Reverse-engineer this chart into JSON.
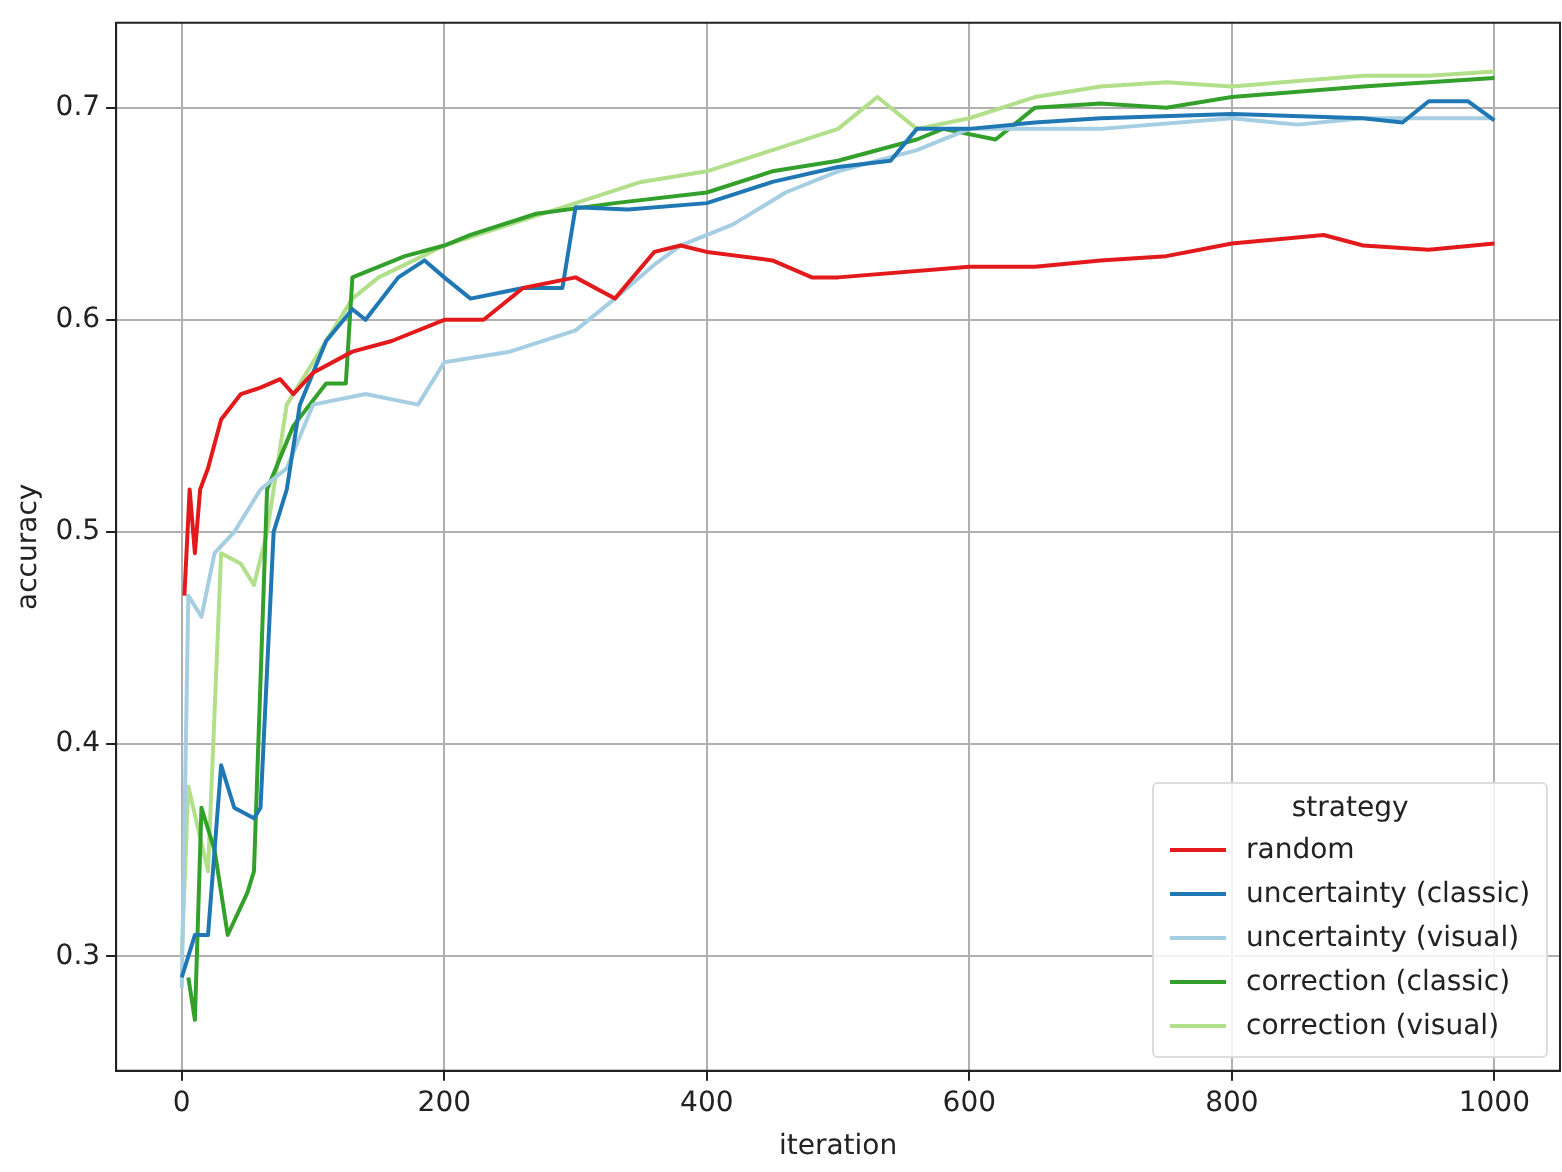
{
  "chart_data": {
    "type": "line",
    "xlabel": "iteration",
    "ylabel": "accuracy",
    "legend_title": "strategy",
    "legend": "bottom right",
    "grid": true,
    "xlim": [
      -50,
      1050
    ],
    "xticks": [
      0,
      200,
      400,
      600,
      800,
      1000
    ],
    "ylim": [
      0.246,
      0.74
    ],
    "yticks": [
      0.3,
      0.4,
      0.5,
      0.6,
      0.7
    ],
    "series": [
      {
        "name": "random",
        "color": "#e31a1c",
        "x": [
          2,
          6,
          10,
          14,
          20,
          30,
          45,
          60,
          75,
          85,
          100,
          130,
          160,
          200,
          230,
          260,
          300,
          330,
          360,
          380,
          400,
          450,
          480,
          500,
          600,
          650,
          700,
          750,
          800,
          870,
          900,
          950,
          1000
        ],
        "values": [
          0.47,
          0.52,
          0.49,
          0.52,
          0.53,
          0.553,
          0.565,
          0.568,
          0.572,
          0.565,
          0.575,
          0.585,
          0.59,
          0.6,
          0.6,
          0.615,
          0.62,
          0.61,
          0.632,
          0.635,
          0.632,
          0.628,
          0.62,
          0.62,
          0.625,
          0.625,
          0.628,
          0.63,
          0.636,
          0.64,
          0.635,
          0.633,
          0.636
        ]
      },
      {
        "name": "uncertainty (classic)",
        "color": "#1f78b4",
        "x": [
          0,
          10,
          20,
          30,
          40,
          55,
          60,
          70,
          80,
          90,
          110,
          130,
          140,
          165,
          185,
          200,
          220,
          260,
          290,
          300,
          340,
          400,
          450,
          500,
          540,
          560,
          600,
          650,
          700,
          800,
          900,
          930,
          950,
          980,
          1000
        ],
        "values": [
          0.29,
          0.31,
          0.31,
          0.39,
          0.37,
          0.365,
          0.37,
          0.5,
          0.52,
          0.56,
          0.59,
          0.605,
          0.6,
          0.62,
          0.628,
          0.62,
          0.61,
          0.615,
          0.615,
          0.653,
          0.652,
          0.655,
          0.665,
          0.672,
          0.675,
          0.69,
          0.69,
          0.693,
          0.695,
          0.697,
          0.695,
          0.693,
          0.703,
          0.703,
          0.694
        ]
      },
      {
        "name": "uncertainty (visual)",
        "color": "#a6cee3",
        "x": [
          0,
          5,
          15,
          25,
          40,
          60,
          80,
          100,
          140,
          180,
          200,
          250,
          300,
          330,
          360,
          380,
          420,
          460,
          500,
          560,
          600,
          700,
          800,
          850,
          900,
          1000
        ],
        "values": [
          0.285,
          0.47,
          0.46,
          0.49,
          0.5,
          0.52,
          0.53,
          0.56,
          0.565,
          0.56,
          0.58,
          0.585,
          0.595,
          0.61,
          0.626,
          0.635,
          0.645,
          0.66,
          0.67,
          0.68,
          0.69,
          0.69,
          0.695,
          0.692,
          0.695,
          0.695
        ]
      },
      {
        "name": "correction (classic)",
        "color": "#33a02c",
        "x": [
          5,
          10,
          15,
          25,
          35,
          50,
          55,
          65,
          85,
          110,
          125,
          130,
          170,
          200,
          220,
          270,
          330,
          400,
          450,
          500,
          560,
          580,
          620,
          650,
          700,
          750,
          800,
          900,
          950,
          1000
        ],
        "values": [
          0.29,
          0.27,
          0.37,
          0.35,
          0.31,
          0.33,
          0.34,
          0.52,
          0.55,
          0.57,
          0.57,
          0.62,
          0.63,
          0.635,
          0.64,
          0.65,
          0.655,
          0.66,
          0.67,
          0.675,
          0.685,
          0.69,
          0.685,
          0.7,
          0.702,
          0.7,
          0.705,
          0.71,
          0.712,
          0.714
        ]
      },
      {
        "name": "correction (visual)",
        "color": "#b2df8a",
        "x": [
          0,
          5,
          20,
          30,
          45,
          55,
          65,
          80,
          100,
          130,
          150,
          200,
          250,
          300,
          350,
          400,
          450,
          500,
          530,
          560,
          600,
          650,
          700,
          750,
          800,
          900,
          950,
          1000
        ],
        "values": [
          0.3,
          0.38,
          0.34,
          0.49,
          0.485,
          0.475,
          0.5,
          0.56,
          0.58,
          0.61,
          0.62,
          0.635,
          0.645,
          0.655,
          0.665,
          0.67,
          0.68,
          0.69,
          0.705,
          0.69,
          0.695,
          0.705,
          0.71,
          0.712,
          0.71,
          0.715,
          0.715,
          0.717
        ]
      }
    ]
  }
}
